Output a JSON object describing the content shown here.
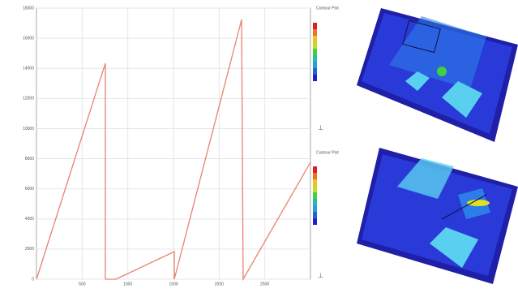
{
  "chart_data": {
    "type": "line",
    "x": [
      0,
      754,
      754,
      870,
      1509,
      1509,
      2246,
      2263,
      3000
    ],
    "series": [
      {
        "color": "#e8826e",
        "values": [
          0,
          14335,
          0,
          0,
          1832,
          0,
          17246,
          0,
          7760
        ]
      }
    ],
    "xlim": [
      0,
      3000
    ],
    "xticks": [
      500,
      1000,
      1500,
      2000,
      2500
    ],
    "ylim": [
      0,
      18000
    ],
    "yticks": [
      0,
      2000,
      4000,
      6000,
      8000,
      10000,
      12000,
      14000,
      16000,
      18000
    ],
    "grid": true
  },
  "legends": [
    {
      "title": "Contour Plot"
    },
    {
      "title": "Contour Plot"
    }
  ]
}
